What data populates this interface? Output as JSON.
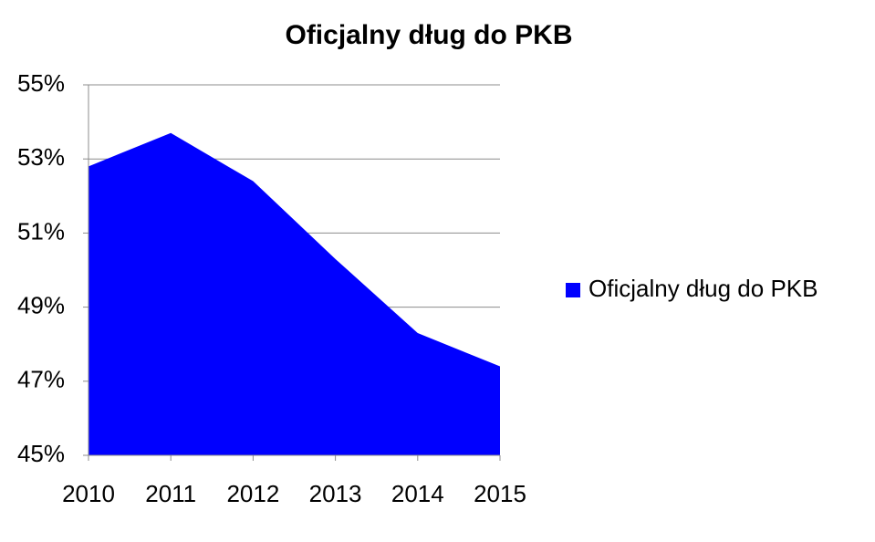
{
  "chart_data": {
    "type": "area",
    "title": "Oficjalny dług do PKB",
    "categories": [
      "2010",
      "2011",
      "2012",
      "2013",
      "2014",
      "2015"
    ],
    "series": [
      {
        "name": "Oficjalny dług do PKB",
        "color": "#0000ff",
        "values": [
          52.8,
          53.7,
          52.4,
          50.3,
          48.3,
          47.4
        ]
      }
    ],
    "ylim": [
      45,
      55
    ],
    "yticks": [
      {
        "value": 45,
        "label": "45%"
      },
      {
        "value": 47,
        "label": "47%"
      },
      {
        "value": 49,
        "label": "49%"
      },
      {
        "value": 51,
        "label": "51%"
      },
      {
        "value": 53,
        "label": "53%"
      },
      {
        "value": 55,
        "label": "55%"
      }
    ],
    "grid": true,
    "legend": "right"
  }
}
